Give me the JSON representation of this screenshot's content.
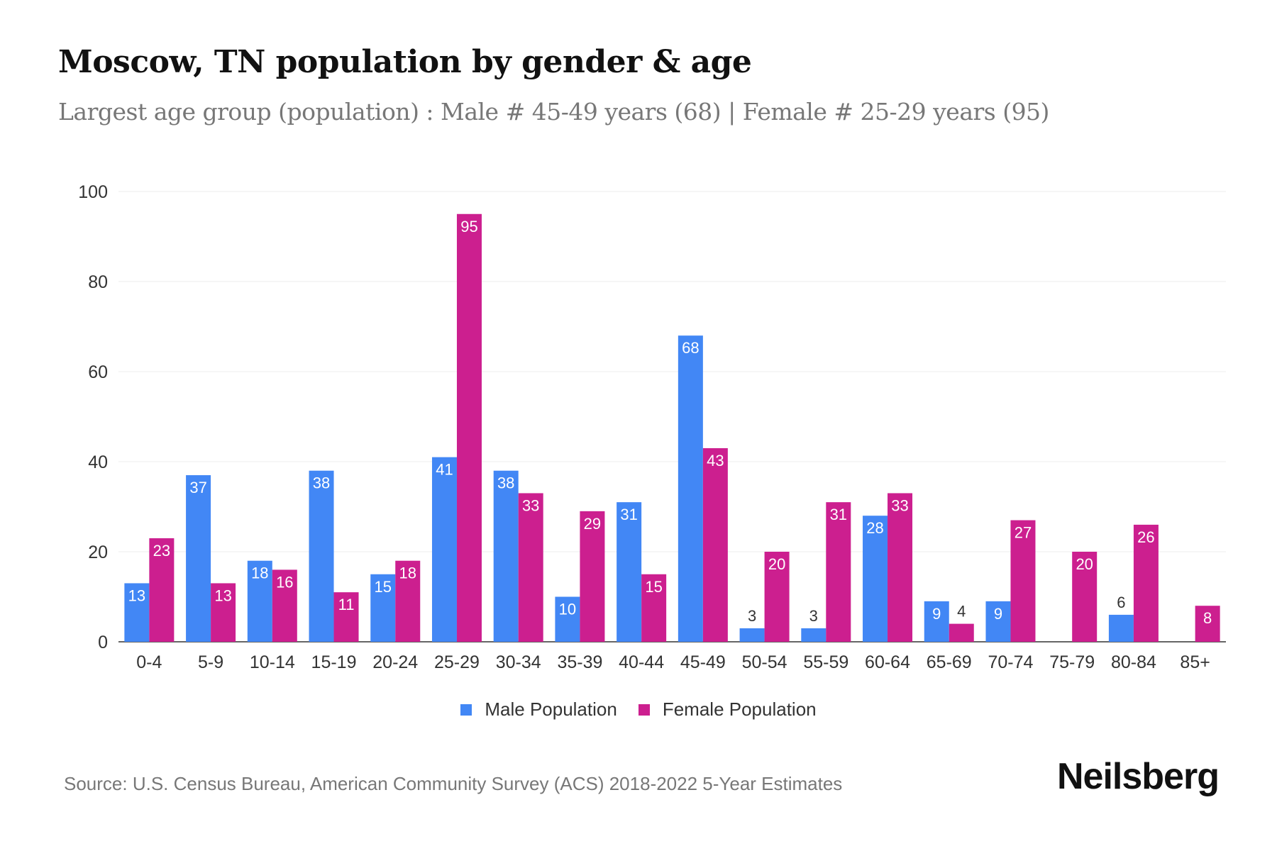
{
  "chart_data": {
    "type": "bar",
    "title": "Moscow, TN population by gender & age",
    "subtitle": "Largest age group (population) : Male # 45-49 years (68) | Female # 25-29 years (95)",
    "categories": [
      "0-4",
      "5-9",
      "10-14",
      "15-19",
      "20-24",
      "25-29",
      "30-34",
      "35-39",
      "40-44",
      "45-49",
      "50-54",
      "55-59",
      "60-64",
      "65-69",
      "70-74",
      "75-79",
      "80-84",
      "85+"
    ],
    "series": [
      {
        "name": "Male Population",
        "color": "#4287f5",
        "values": [
          13,
          37,
          18,
          38,
          15,
          41,
          38,
          10,
          31,
          68,
          3,
          3,
          28,
          9,
          9,
          0,
          6,
          0
        ]
      },
      {
        "name": "Female Population",
        "color": "#cc1f8f",
        "values": [
          23,
          13,
          16,
          11,
          18,
          95,
          33,
          29,
          15,
          43,
          20,
          31,
          33,
          4,
          27,
          20,
          26,
          8
        ]
      }
    ],
    "ylim": [
      0,
      100
    ],
    "yticks": [
      "0",
      "20",
      "40",
      "60",
      "80",
      "100"
    ],
    "grid": true,
    "legend": "bottom-center",
    "xlabel": "",
    "ylabel": ""
  },
  "source": "Source: U.S. Census Bureau, American Community Survey (ACS) 2018-2022 5-Year Estimates",
  "logo": "Neilsberg"
}
